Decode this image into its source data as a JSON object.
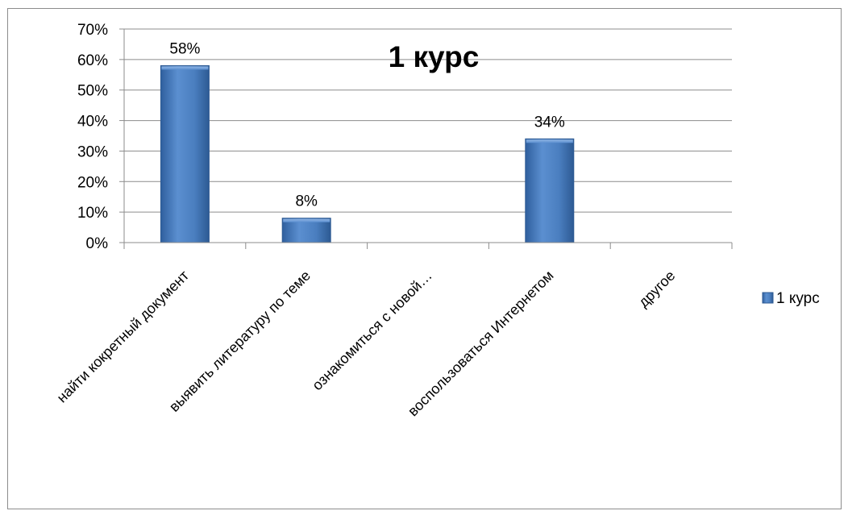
{
  "chart_data": {
    "type": "bar",
    "title": "1 курс",
    "categories": [
      "найти кокретный документ",
      "выявить литературу по теме",
      "ознакомиться с новой…",
      "воспользоваться Интернетом",
      "другое"
    ],
    "series": [
      {
        "name": "1 курс",
        "values": [
          58,
          8,
          null,
          34,
          null
        ],
        "labels": [
          "58%",
          "8%",
          "",
          "34%",
          ""
        ],
        "color": "#4a7ebf"
      }
    ],
    "ylim": [
      0,
      70
    ],
    "yticks": [
      "0%",
      "10%",
      "20%",
      "30%",
      "40%",
      "50%",
      "60%",
      "70%"
    ],
    "grid": true,
    "legend": "right"
  }
}
